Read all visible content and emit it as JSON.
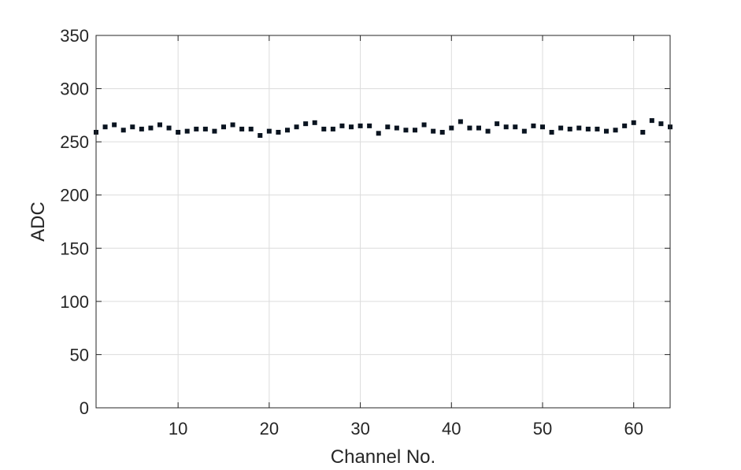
{
  "chart_data": {
    "type": "scatter",
    "xlabel": "Channel No.",
    "ylabel": "ADC",
    "xlim": [
      1,
      64
    ],
    "ylim": [
      0,
      350
    ],
    "xticks": [
      10,
      20,
      30,
      40,
      50,
      60
    ],
    "yticks": [
      0,
      50,
      100,
      150,
      200,
      250,
      300,
      350
    ],
    "grid": true,
    "marker": "square",
    "marker_color": "#0a1420",
    "x": [
      1,
      2,
      3,
      4,
      5,
      6,
      7,
      8,
      9,
      10,
      11,
      12,
      13,
      14,
      15,
      16,
      17,
      18,
      19,
      20,
      21,
      22,
      23,
      24,
      25,
      26,
      27,
      28,
      29,
      30,
      31,
      32,
      33,
      34,
      35,
      36,
      37,
      38,
      39,
      40,
      41,
      42,
      43,
      44,
      45,
      46,
      47,
      48,
      49,
      50,
      51,
      52,
      53,
      54,
      55,
      56,
      57,
      58,
      59,
      60,
      61,
      62,
      63,
      64
    ],
    "y": [
      259,
      264,
      266,
      261,
      264,
      262,
      263,
      266,
      263,
      259,
      260,
      262,
      262,
      260,
      264,
      266,
      262,
      262,
      256,
      260,
      259,
      261,
      264,
      267,
      268,
      262,
      262,
      265,
      264,
      265,
      265,
      258,
      264,
      263,
      261,
      261,
      266,
      260,
      259,
      263,
      269,
      263,
      263,
      260,
      267,
      264,
      264,
      260,
      265,
      264,
      259,
      263,
      262,
      263,
      262,
      262,
      260,
      261,
      265,
      268,
      259,
      270,
      267,
      264
    ]
  }
}
